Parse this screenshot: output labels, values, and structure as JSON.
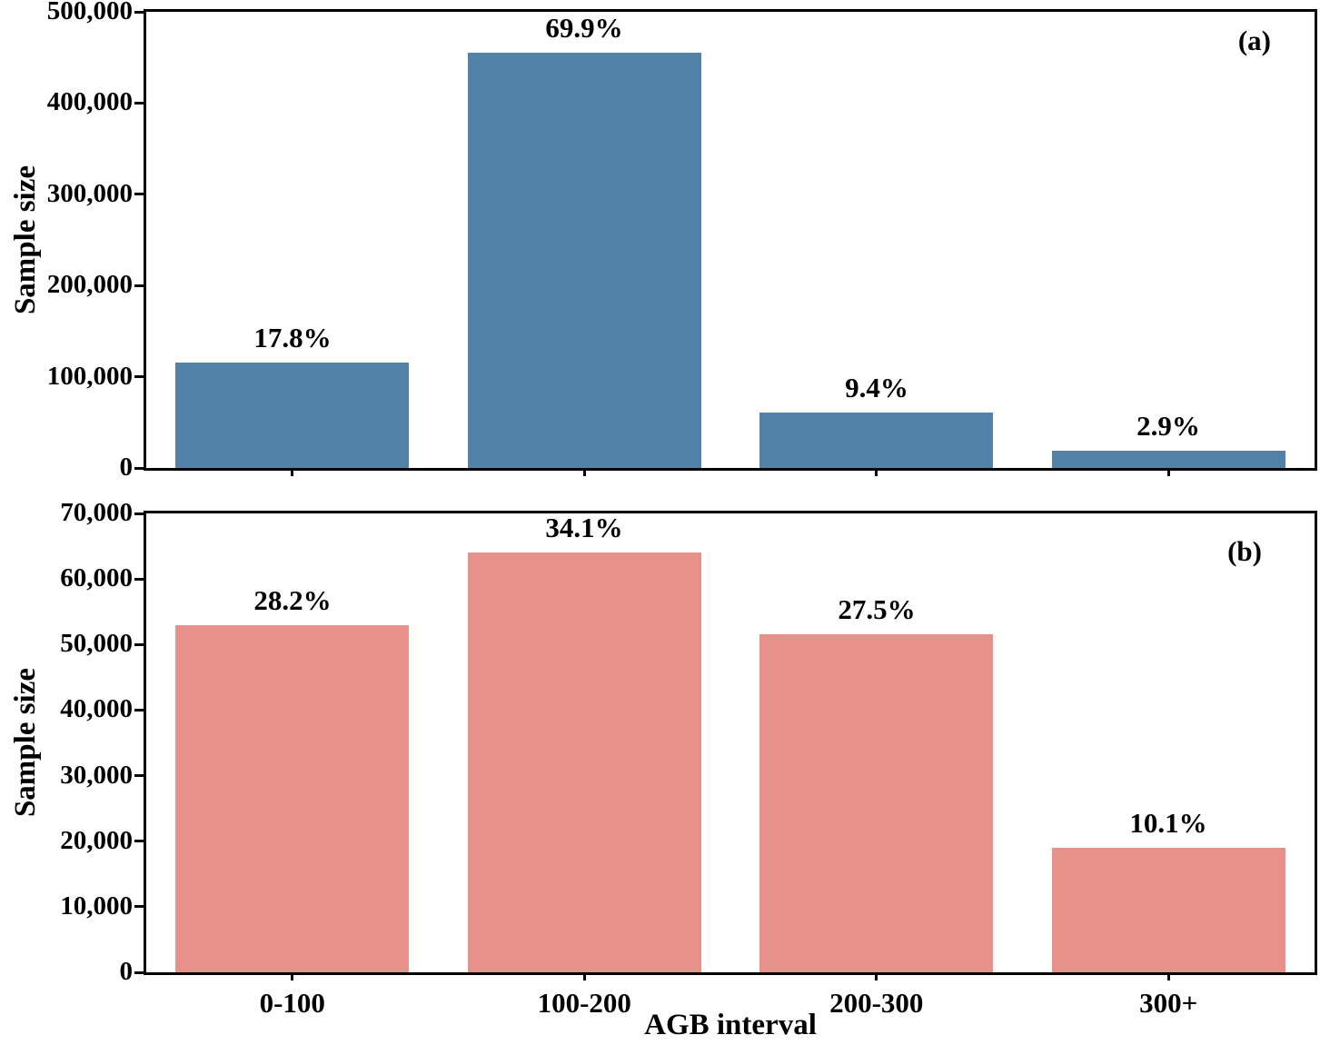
{
  "chart_data": [
    {
      "type": "bar",
      "panel": "(a)",
      "ylabel": "Sample size",
      "xlabel": "AGB interval",
      "categories": [
        "0-100",
        "100-200",
        "200-300",
        "300+"
      ],
      "values": [
        116000,
        455000,
        61000,
        19000
      ],
      "bar_labels": [
        "17.8%",
        "69.9%",
        "9.4%",
        "2.9%"
      ],
      "ylim": [
        0,
        500000
      ],
      "yticks": [
        0,
        100000,
        200000,
        300000,
        400000,
        500000
      ],
      "ytick_labels": [
        "0",
        "100,000",
        "200,000",
        "300,000",
        "400,000",
        "500,000"
      ],
      "bar_color": "#5282A8",
      "grid": false,
      "legend": false,
      "x_tick_labels_shown": false
    },
    {
      "type": "bar",
      "panel": "(b)",
      "ylabel": "Sample size",
      "xlabel": "AGB interval",
      "categories": [
        "0-100",
        "100-200",
        "200-300",
        "300+"
      ],
      "values": [
        53000,
        64000,
        51500,
        19000
      ],
      "bar_labels": [
        "28.2%",
        "34.1%",
        "27.5%",
        "10.1%"
      ],
      "ylim": [
        0,
        70000
      ],
      "yticks": [
        0,
        10000,
        20000,
        30000,
        40000,
        50000,
        60000,
        70000
      ],
      "ytick_labels": [
        "0",
        "10,000",
        "20,000",
        "30,000",
        "40,000",
        "50,000",
        "60,000",
        "70,000"
      ],
      "bar_color": "#E8918A",
      "grid": false,
      "legend": false,
      "x_tick_labels_shown": true
    }
  ]
}
